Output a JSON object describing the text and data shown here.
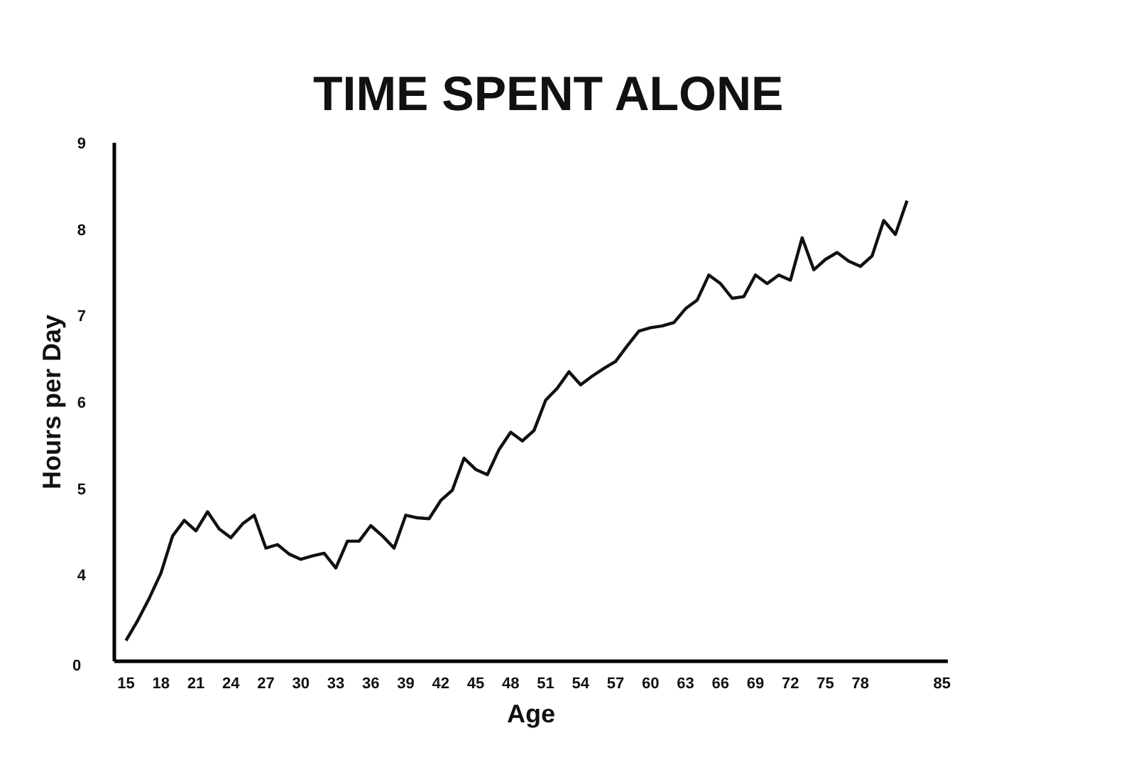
{
  "chart_data": {
    "type": "line",
    "title": "TIME SPENT ALONE",
    "xlabel": "Age",
    "ylabel": "Hours per Day",
    "x": [
      15,
      16,
      17,
      18,
      19,
      20,
      21,
      22,
      23,
      24,
      25,
      26,
      27,
      28,
      29,
      30,
      31,
      32,
      33,
      34,
      35,
      36,
      37,
      38,
      39,
      40,
      41,
      42,
      43,
      44,
      45,
      46,
      47,
      48,
      49,
      50,
      51,
      52,
      53,
      54,
      55,
      56,
      57,
      58,
      59,
      60,
      61,
      62,
      63,
      64,
      65,
      66,
      67,
      68,
      69,
      70,
      71,
      72,
      73,
      74,
      75,
      76,
      77,
      78,
      79,
      80,
      81,
      82
    ],
    "series": [
      {
        "color": "#111111",
        "values": [
          3.24,
          3.47,
          3.73,
          4.02,
          4.45,
          4.63,
          4.51,
          4.73,
          4.53,
          4.43,
          4.59,
          4.69,
          4.31,
          4.35,
          4.24,
          4.18,
          4.22,
          4.25,
          4.08,
          4.39,
          4.39,
          4.57,
          4.45,
          4.31,
          4.69,
          4.66,
          4.65,
          4.86,
          4.98,
          5.35,
          5.22,
          5.16,
          5.45,
          5.65,
          5.55,
          5.67,
          6.02,
          6.16,
          6.35,
          6.2,
          6.3,
          6.39,
          6.47,
          6.65,
          6.82,
          6.86,
          6.88,
          6.92,
          7.08,
          7.18,
          7.47,
          7.37,
          7.2,
          7.22,
          7.47,
          7.37,
          7.47,
          7.41,
          7.9,
          7.53,
          7.65,
          7.73,
          7.63,
          7.57,
          7.69,
          8.1,
          7.94,
          8.33
        ]
      }
    ],
    "xlim": [
      14,
      85.5
    ],
    "xticks": [
      15,
      18,
      21,
      24,
      27,
      30,
      33,
      36,
      39,
      42,
      45,
      48,
      51,
      54,
      57,
      60,
      63,
      66,
      69,
      72,
      75,
      78,
      85
    ],
    "ylim": [
      3,
      9
    ],
    "yticks": [
      4,
      5,
      6,
      7,
      8,
      9
    ],
    "annotations": [
      "0"
    ],
    "grid": false,
    "marker": "none",
    "line_style": "solid"
  }
}
